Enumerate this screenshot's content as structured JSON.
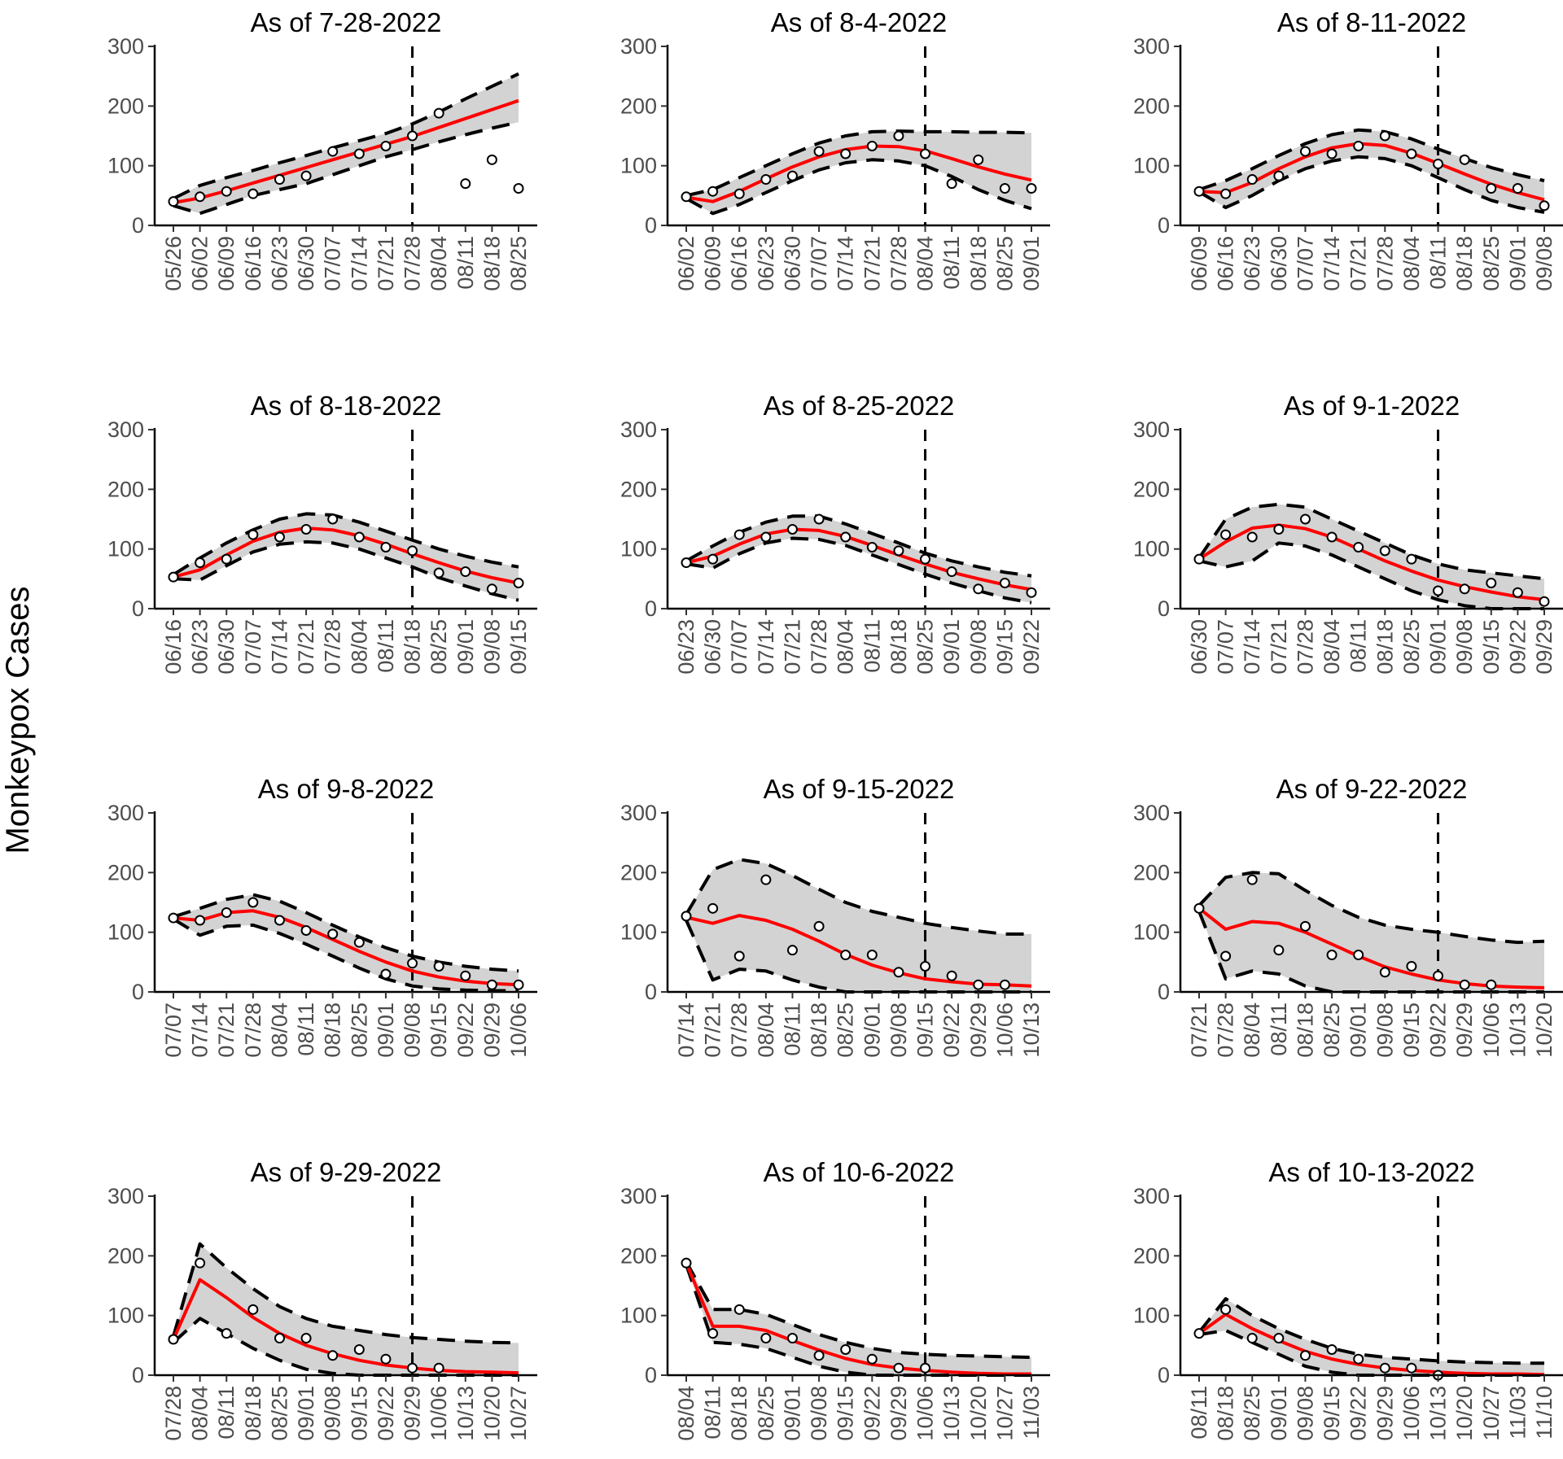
{
  "figure": {
    "ylabel": "Monkeypox Cases"
  },
  "chart_data": [
    {
      "type": "line",
      "title": "As of 7-28-2022",
      "xlabel": "",
      "ylabel": "Monkeypox Cases",
      "ylim": [
        0,
        300
      ],
      "yticks": [
        0,
        100,
        200,
        300
      ],
      "categories": [
        "05/26",
        "06/02",
        "06/09",
        "06/16",
        "06/23",
        "06/30",
        "07/07",
        "07/14",
        "07/21",
        "07/28",
        "08/04",
        "08/11",
        "08/18",
        "08/25"
      ],
      "cutoff": "07/28",
      "observed": [
        40,
        48,
        57,
        53,
        77,
        83,
        124,
        120,
        133,
        150,
        188,
        70,
        110,
        62
      ],
      "fitted": [
        38,
        46,
        58,
        71,
        84,
        97,
        110,
        123,
        136,
        149,
        164,
        179,
        194,
        209
      ],
      "lower": [
        33,
        20,
        35,
        50,
        60,
        70,
        85,
        100,
        115,
        127,
        140,
        152,
        163,
        173
      ],
      "upper": [
        45,
        67,
        80,
        92,
        105,
        117,
        130,
        142,
        154,
        170,
        190,
        212,
        233,
        254
      ]
    },
    {
      "type": "line",
      "title": "As of 8-4-2022",
      "xlabel": "",
      "ylabel": "Monkeypox Cases",
      "ylim": [
        0,
        300
      ],
      "yticks": [
        0,
        100,
        200,
        300
      ],
      "categories": [
        "06/02",
        "06/09",
        "06/16",
        "06/23",
        "06/30",
        "07/07",
        "07/14",
        "07/21",
        "07/28",
        "08/04",
        "08/11",
        "08/18",
        "08/25",
        "09/01"
      ],
      "cutoff": "08/04",
      "observed": [
        48,
        57,
        53,
        77,
        83,
        124,
        120,
        133,
        150,
        120,
        70,
        110,
        62,
        62
      ],
      "fitted": [
        47,
        40,
        57,
        78,
        98,
        115,
        127,
        133,
        132,
        125,
        112,
        98,
        86,
        76
      ],
      "lower": [
        45,
        20,
        35,
        55,
        75,
        93,
        105,
        110,
        108,
        100,
        82,
        60,
        42,
        28
      ],
      "upper": [
        50,
        60,
        80,
        100,
        120,
        138,
        150,
        157,
        158,
        157,
        157,
        156,
        156,
        155
      ]
    },
    {
      "type": "line",
      "title": "As of 8-11-2022",
      "xlabel": "",
      "ylabel": "Monkeypox Cases",
      "ylim": [
        0,
        300
      ],
      "yticks": [
        0,
        100,
        200,
        300
      ],
      "categories": [
        "06/09",
        "06/16",
        "06/23",
        "06/30",
        "07/07",
        "07/14",
        "07/21",
        "07/28",
        "08/04",
        "08/11",
        "08/18",
        "08/25",
        "09/01",
        "09/08"
      ],
      "cutoff": "08/11",
      "observed": [
        57,
        53,
        77,
        83,
        124,
        120,
        133,
        150,
        120,
        103,
        110,
        62,
        62,
        33
      ],
      "fitted": [
        57,
        55,
        72,
        95,
        115,
        130,
        137,
        134,
        121,
        104,
        86,
        69,
        55,
        43
      ],
      "lower": [
        56,
        30,
        50,
        75,
        95,
        108,
        115,
        112,
        100,
        80,
        60,
        42,
        30,
        22
      ],
      "upper": [
        60,
        75,
        95,
        117,
        137,
        152,
        160,
        157,
        145,
        128,
        112,
        97,
        85,
        75
      ]
    },
    {
      "type": "line",
      "title": "As of 8-18-2022",
      "xlabel": "",
      "ylabel": "Monkeypox Cases",
      "ylim": [
        0,
        300
      ],
      "yticks": [
        0,
        100,
        200,
        300
      ],
      "categories": [
        "06/16",
        "06/23",
        "06/30",
        "07/07",
        "07/14",
        "07/21",
        "07/28",
        "08/04",
        "08/11",
        "08/18",
        "08/25",
        "09/01",
        "09/08",
        "09/15"
      ],
      "cutoff": "08/18",
      "observed": [
        53,
        77,
        83,
        124,
        120,
        133,
        150,
        120,
        103,
        97,
        60,
        62,
        33,
        43
      ],
      "fitted": [
        53,
        65,
        90,
        113,
        128,
        135,
        132,
        122,
        108,
        92,
        77,
        63,
        52,
        43
      ],
      "lower": [
        50,
        48,
        72,
        95,
        108,
        112,
        110,
        100,
        85,
        70,
        52,
        38,
        25,
        14
      ],
      "upper": [
        57,
        85,
        110,
        132,
        150,
        159,
        157,
        145,
        130,
        115,
        100,
        88,
        78,
        70
      ]
    },
    {
      "type": "line",
      "title": "As of 8-25-2022",
      "xlabel": "",
      "ylabel": "Monkeypox Cases",
      "ylim": [
        0,
        300
      ],
      "yticks": [
        0,
        100,
        200,
        300
      ],
      "categories": [
        "06/23",
        "06/30",
        "07/07",
        "07/14",
        "07/21",
        "07/28",
        "08/04",
        "08/11",
        "08/18",
        "08/25",
        "09/01",
        "09/08",
        "09/15",
        "09/22"
      ],
      "cutoff": "08/25",
      "observed": [
        77,
        83,
        124,
        120,
        133,
        150,
        120,
        103,
        97,
        83,
        62,
        33,
        43,
        27
      ],
      "fitted": [
        77,
        88,
        108,
        125,
        133,
        131,
        121,
        106,
        90,
        75,
        61,
        50,
        40,
        32
      ],
      "lower": [
        75,
        68,
        92,
        110,
        118,
        116,
        106,
        90,
        74,
        58,
        43,
        30,
        18,
        10
      ],
      "upper": [
        80,
        105,
        128,
        145,
        155,
        155,
        142,
        126,
        110,
        93,
        80,
        70,
        61,
        55
      ]
    },
    {
      "type": "line",
      "title": "As of 9-1-2022",
      "xlabel": "",
      "ylabel": "Monkeypox Cases",
      "ylim": [
        0,
        300
      ],
      "yticks": [
        0,
        100,
        200,
        300
      ],
      "categories": [
        "06/30",
        "07/07",
        "07/14",
        "07/21",
        "07/28",
        "08/04",
        "08/11",
        "08/18",
        "08/25",
        "09/01",
        "09/08",
        "09/15",
        "09/22",
        "09/29"
      ],
      "cutoff": "09/01",
      "observed": [
        83,
        124,
        120,
        133,
        150,
        120,
        103,
        97,
        83,
        30,
        33,
        43,
        27,
        12
      ],
      "fitted": [
        83,
        112,
        135,
        140,
        134,
        120,
        100,
        80,
        63,
        48,
        37,
        28,
        20,
        15
      ],
      "lower": [
        80,
        70,
        80,
        110,
        105,
        90,
        70,
        50,
        30,
        15,
        5,
        0,
        0,
        0
      ],
      "upper": [
        85,
        150,
        170,
        175,
        170,
        150,
        130,
        110,
        90,
        75,
        65,
        60,
        55,
        50
      ]
    },
    {
      "type": "line",
      "title": "As of 9-8-2022",
      "xlabel": "",
      "ylabel": "Monkeypox Cases",
      "ylim": [
        0,
        300
      ],
      "yticks": [
        0,
        100,
        200,
        300
      ],
      "categories": [
        "07/07",
        "07/14",
        "07/21",
        "07/28",
        "08/04",
        "08/11",
        "08/18",
        "08/25",
        "09/01",
        "09/08",
        "09/15",
        "09/22",
        "09/29",
        "10/06"
      ],
      "cutoff": "09/08",
      "observed": [
        124,
        120,
        133,
        150,
        120,
        103,
        97,
        83,
        30,
        48,
        43,
        27,
        12,
        12
      ],
      "fitted": [
        124,
        120,
        133,
        136,
        125,
        108,
        88,
        68,
        50,
        35,
        25,
        18,
        14,
        12
      ],
      "lower": [
        122,
        95,
        110,
        112,
        98,
        80,
        60,
        40,
        22,
        10,
        5,
        3,
        2,
        2
      ],
      "upper": [
        126,
        140,
        155,
        163,
        152,
        133,
        112,
        92,
        74,
        60,
        50,
        43,
        38,
        35
      ]
    },
    {
      "type": "line",
      "title": "As of 9-15-2022",
      "xlabel": "",
      "ylabel": "Monkeypox Cases",
      "ylim": [
        0,
        300
      ],
      "yticks": [
        0,
        100,
        200,
        300
      ],
      "categories": [
        "07/14",
        "07/21",
        "07/28",
        "08/04",
        "08/11",
        "08/18",
        "08/25",
        "09/01",
        "09/08",
        "09/15",
        "09/22",
        "09/29",
        "10/06",
        "10/13"
      ],
      "cutoff": "09/15",
      "observed": [
        127,
        140,
        60,
        188,
        70,
        110,
        62,
        62,
        33,
        43,
        27,
        12,
        12,
        null
      ],
      "fitted": [
        125,
        115,
        128,
        120,
        105,
        85,
        63,
        45,
        32,
        22,
        17,
        13,
        12,
        10
      ],
      "lower": [
        120,
        20,
        38,
        35,
        20,
        8,
        0,
        0,
        0,
        0,
        0,
        0,
        0,
        0
      ],
      "upper": [
        130,
        205,
        222,
        215,
        195,
        172,
        150,
        135,
        125,
        115,
        108,
        102,
        97,
        97
      ]
    },
    {
      "type": "line",
      "title": "As of 9-22-2022",
      "xlabel": "",
      "ylabel": "Monkeypox Cases",
      "ylim": [
        0,
        300
      ],
      "yticks": [
        0,
        100,
        200,
        300
      ],
      "categories": [
        "07/21",
        "07/28",
        "08/04",
        "08/11",
        "08/18",
        "08/25",
        "09/01",
        "09/08",
        "09/15",
        "09/22",
        "09/29",
        "10/06",
        "10/13",
        "10/20"
      ],
      "cutoff": "09/22",
      "observed": [
        140,
        60,
        188,
        70,
        110,
        62,
        62,
        33,
        43,
        27,
        12,
        12,
        null,
        null
      ],
      "fitted": [
        140,
        105,
        118,
        115,
        100,
        80,
        60,
        42,
        30,
        20,
        14,
        10,
        8,
        7
      ],
      "lower": [
        135,
        22,
        35,
        30,
        10,
        0,
        0,
        0,
        0,
        0,
        0,
        0,
        0,
        0
      ],
      "upper": [
        145,
        192,
        200,
        198,
        170,
        145,
        125,
        112,
        105,
        100,
        93,
        87,
        83,
        85
      ]
    },
    {
      "type": "line",
      "title": "As of 9-29-2022",
      "xlabel": "",
      "ylabel": "Monkeypox Cases",
      "ylim": [
        0,
        300
      ],
      "yticks": [
        0,
        100,
        200,
        300
      ],
      "categories": [
        "07/28",
        "08/04",
        "08/11",
        "08/18",
        "08/25",
        "09/01",
        "09/08",
        "09/15",
        "09/22",
        "09/29",
        "10/06",
        "10/13",
        "10/20",
        "10/27"
      ],
      "cutoff": "09/29",
      "observed": [
        60,
        188,
        70,
        110,
        62,
        62,
        33,
        43,
        27,
        12,
        12,
        null,
        null,
        null
      ],
      "fitted": [
        60,
        160,
        130,
        97,
        70,
        50,
        36,
        25,
        17,
        12,
        8,
        6,
        5,
        4
      ],
      "lower": [
        55,
        95,
        70,
        45,
        25,
        10,
        3,
        0,
        0,
        0,
        0,
        0,
        0,
        0
      ],
      "upper": [
        65,
        220,
        180,
        145,
        115,
        95,
        82,
        75,
        68,
        63,
        60,
        57,
        55,
        54
      ]
    },
    {
      "type": "line",
      "title": "As of 10-6-2022",
      "xlabel": "",
      "ylabel": "Monkeypox Cases",
      "ylim": [
        0,
        300
      ],
      "yticks": [
        0,
        100,
        200,
        300
      ],
      "categories": [
        "08/04",
        "08/11",
        "08/18",
        "08/25",
        "09/01",
        "09/08",
        "09/15",
        "09/22",
        "09/29",
        "10/06",
        "10/13",
        "10/20",
        "10/27",
        "11/03"
      ],
      "cutoff": "10/06",
      "observed": [
        188,
        70,
        110,
        62,
        62,
        33,
        43,
        27,
        12,
        12,
        null,
        null,
        null,
        null
      ],
      "fitted": [
        188,
        82,
        82,
        75,
        58,
        42,
        28,
        18,
        12,
        8,
        5,
        3,
        2,
        2
      ],
      "lower": [
        185,
        55,
        52,
        45,
        30,
        15,
        5,
        0,
        0,
        0,
        0,
        0,
        0,
        0
      ],
      "upper": [
        190,
        110,
        110,
        102,
        85,
        68,
        55,
        45,
        38,
        35,
        33,
        32,
        31,
        30
      ]
    },
    {
      "type": "line",
      "title": "As of 10-13-2022",
      "xlabel": "",
      "ylabel": "Monkeypox Cases",
      "ylim": [
        0,
        300
      ],
      "yticks": [
        0,
        100,
        200,
        300
      ],
      "categories": [
        "08/11",
        "08/18",
        "08/25",
        "09/01",
        "09/08",
        "09/15",
        "09/22",
        "09/29",
        "10/06",
        "10/13",
        "10/20",
        "10/27",
        "11/03",
        "11/10"
      ],
      "cutoff": "10/13",
      "observed": [
        70,
        110,
        62,
        62,
        33,
        43,
        27,
        12,
        12,
        0,
        null,
        null,
        null,
        null
      ],
      "fitted": [
        70,
        102,
        78,
        58,
        40,
        27,
        18,
        12,
        8,
        5,
        3,
        2,
        2,
        1
      ],
      "lower": [
        68,
        75,
        55,
        35,
        15,
        5,
        0,
        0,
        0,
        0,
        0,
        0,
        0,
        0
      ],
      "upper": [
        72,
        128,
        100,
        78,
        60,
        45,
        35,
        30,
        27,
        24,
        22,
        21,
        20,
        20
      ]
    }
  ]
}
